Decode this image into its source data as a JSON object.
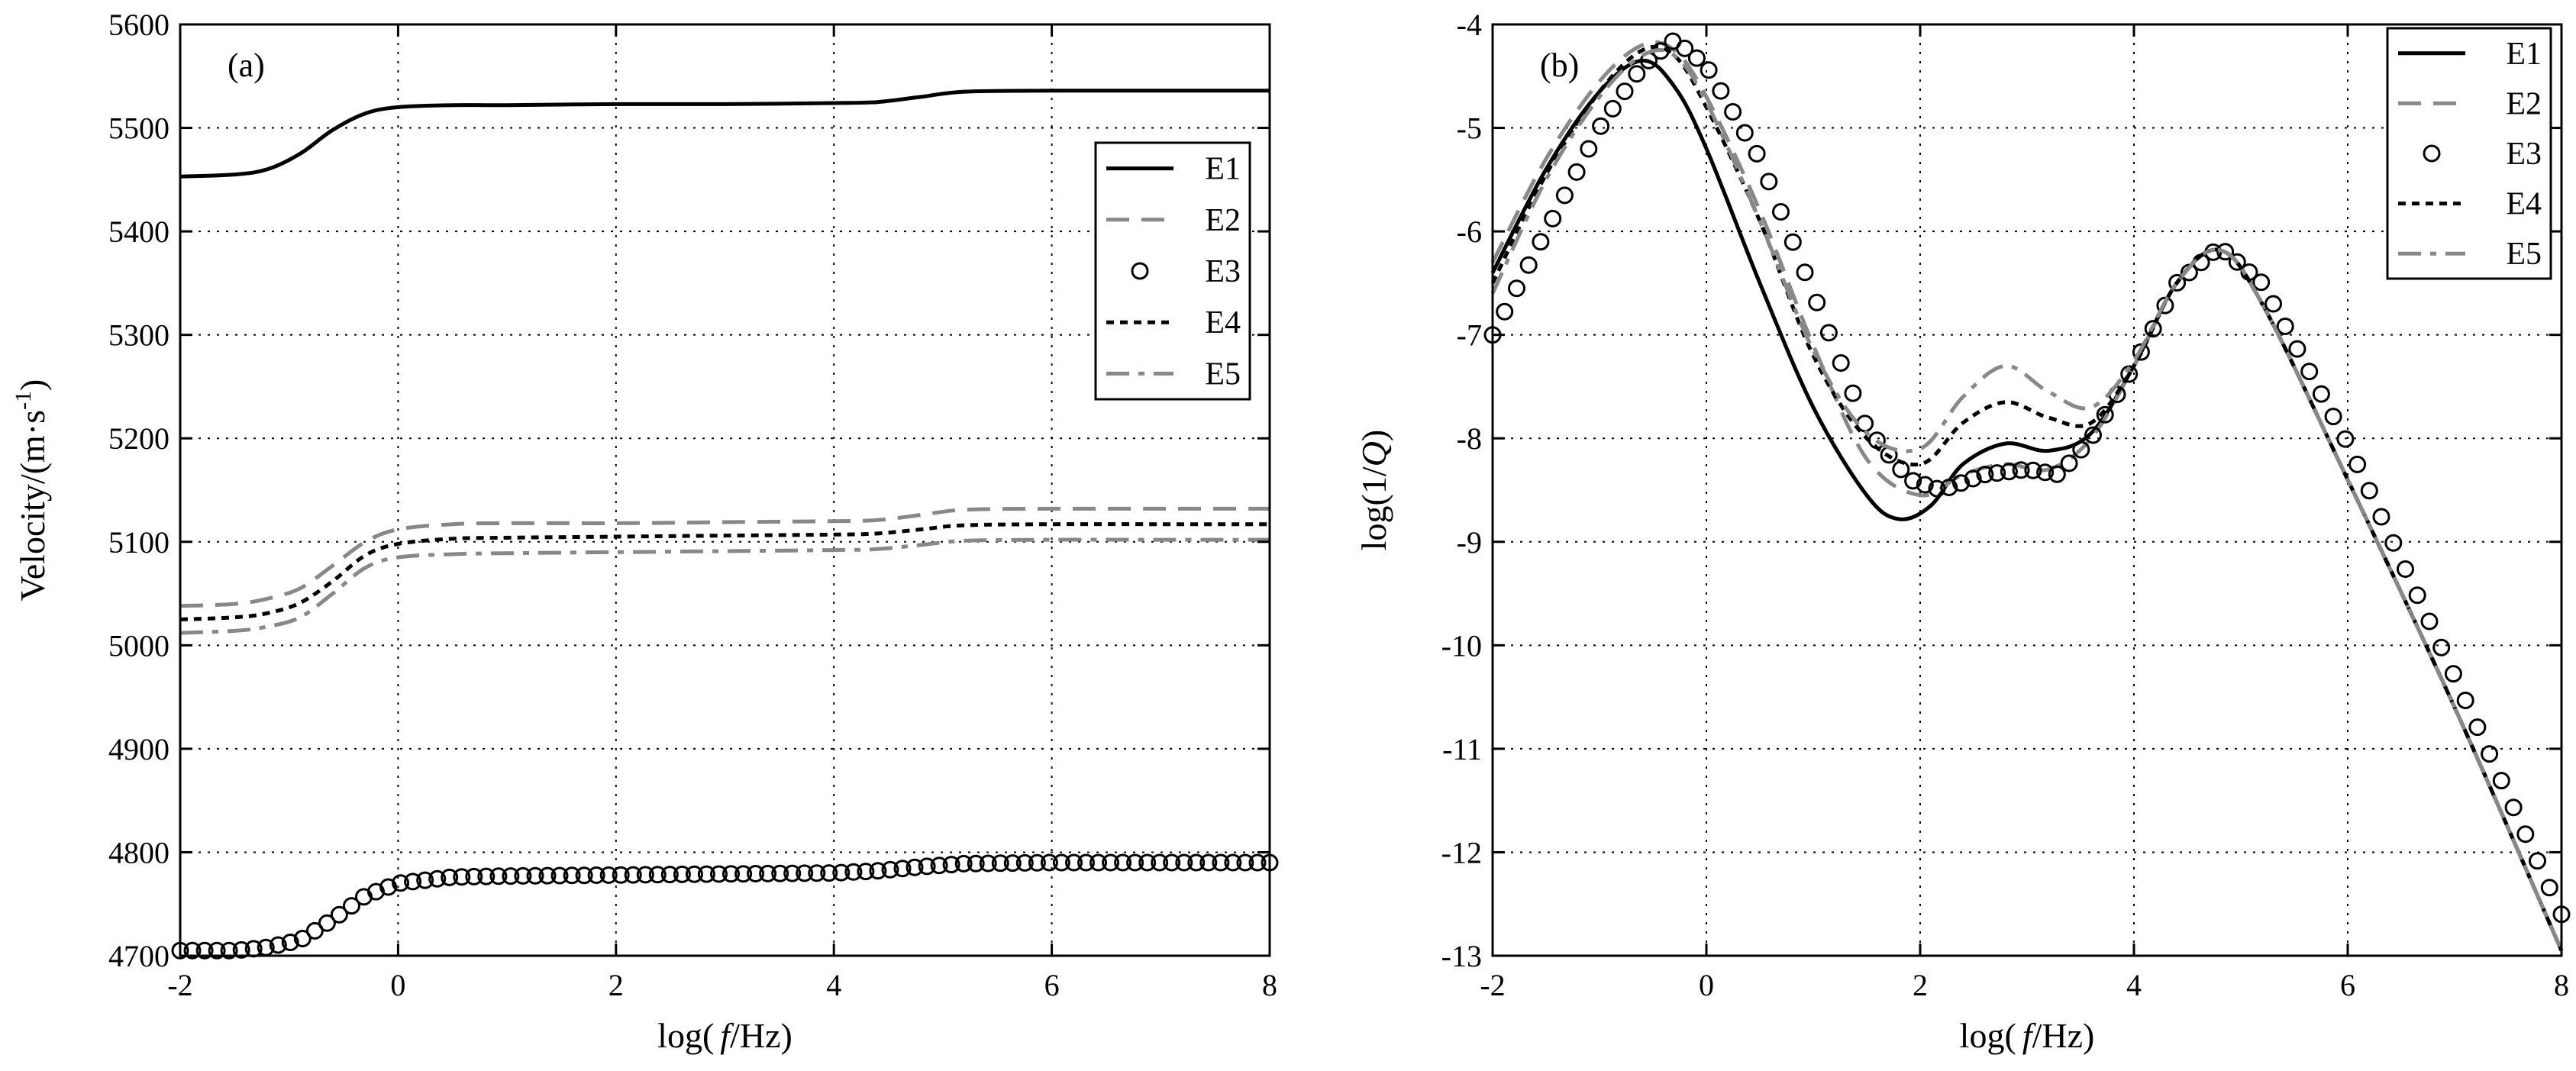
{
  "chart_data": [
    {
      "type": "line",
      "panel_label": "(a)",
      "xlabel_pre": "log(",
      "xlabel_var": "f",
      "xlabel_post": "/Hz)",
      "ylabel_main": "Velocity/(m·s",
      "ylabel_sup": "-1",
      "ylabel_end": ")",
      "xlim": [
        -2,
        8
      ],
      "ylim": [
        4700,
        5600
      ],
      "xticks": [
        -2,
        0,
        2,
        4,
        6,
        8
      ],
      "xtick_labels": [
        "-2",
        "0",
        "2",
        "4",
        "6",
        "8"
      ],
      "yticks": [
        4700,
        4800,
        4900,
        5000,
        5100,
        5200,
        5300,
        5400,
        5500,
        5600
      ],
      "ytick_labels": [
        "4700",
        "4800",
        "4900",
        "5000",
        "5100",
        "5200",
        "5300",
        "5400",
        "5500",
        "5600"
      ],
      "grid": true,
      "legend_position": "top-right",
      "series": [
        {
          "name": "E1",
          "color": "#000000",
          "style": "solid",
          "points": [
            [
              -2,
              5453
            ],
            [
              -1.5,
              5455
            ],
            [
              -1.2,
              5460
            ],
            [
              -0.9,
              5475
            ],
            [
              -0.6,
              5498
            ],
            [
              -0.3,
              5514
            ],
            [
              0,
              5520
            ],
            [
              0.5,
              5522
            ],
            [
              1,
              5522
            ],
            [
              2,
              5523
            ],
            [
              3,
              5523
            ],
            [
              4,
              5524
            ],
            [
              4.4,
              5525
            ],
            [
              4.8,
              5530
            ],
            [
              5.2,
              5535
            ],
            [
              6,
              5536
            ],
            [
              7,
              5536
            ],
            [
              8,
              5536
            ]
          ]
        },
        {
          "name": "E2",
          "color": "#888888",
          "style": "dash",
          "points": [
            [
              -2,
              5038
            ],
            [
              -1.5,
              5040
            ],
            [
              -1.2,
              5045
            ],
            [
              -0.9,
              5055
            ],
            [
              -0.6,
              5077
            ],
            [
              -0.3,
              5100
            ],
            [
              0,
              5112
            ],
            [
              0.5,
              5117
            ],
            [
              1,
              5118
            ],
            [
              2,
              5118
            ],
            [
              3,
              5119
            ],
            [
              4,
              5120
            ],
            [
              4.4,
              5121
            ],
            [
              4.8,
              5126
            ],
            [
              5.2,
              5131
            ],
            [
              6,
              5132
            ],
            [
              7,
              5132
            ],
            [
              8,
              5132
            ]
          ]
        },
        {
          "name": "E3",
          "color": "#000000",
          "style": "circle",
          "points": [
            [
              -2,
              4705
            ],
            [
              -1.5,
              4705
            ],
            [
              -1.2,
              4708
            ],
            [
              -0.9,
              4715
            ],
            [
              -0.6,
              4735
            ],
            [
              -0.3,
              4758
            ],
            [
              0,
              4770
            ],
            [
              0.5,
              4776
            ],
            [
              1,
              4777
            ],
            [
              2,
              4778
            ],
            [
              3,
              4779
            ],
            [
              4,
              4780
            ],
            [
              4.4,
              4782
            ],
            [
              4.8,
              4786
            ],
            [
              5.2,
              4789
            ],
            [
              6,
              4790
            ],
            [
              7,
              4790
            ],
            [
              8,
              4790
            ]
          ]
        },
        {
          "name": "E4",
          "color": "#000000",
          "style": "dot",
          "points": [
            [
              -2,
              5025
            ],
            [
              -1.5,
              5027
            ],
            [
              -1.2,
              5031
            ],
            [
              -0.9,
              5041
            ],
            [
              -0.6,
              5062
            ],
            [
              -0.3,
              5087
            ],
            [
              0,
              5098
            ],
            [
              0.5,
              5103
            ],
            [
              1,
              5104
            ],
            [
              2,
              5105
            ],
            [
              3,
              5106
            ],
            [
              4,
              5107
            ],
            [
              4.4,
              5108
            ],
            [
              4.8,
              5112
            ],
            [
              5.2,
              5116
            ],
            [
              6,
              5117
            ],
            [
              7,
              5117
            ],
            [
              8,
              5117
            ]
          ]
        },
        {
          "name": "E5",
          "color": "#888888",
          "style": "dashdot",
          "points": [
            [
              -2,
              5012
            ],
            [
              -1.5,
              5014
            ],
            [
              -1.2,
              5018
            ],
            [
              -0.9,
              5027
            ],
            [
              -0.6,
              5050
            ],
            [
              -0.3,
              5075
            ],
            [
              0,
              5085
            ],
            [
              0.5,
              5088
            ],
            [
              1,
              5089
            ],
            [
              2,
              5090
            ],
            [
              3,
              5091
            ],
            [
              4,
              5092
            ],
            [
              4.4,
              5093
            ],
            [
              4.8,
              5097
            ],
            [
              5.2,
              5101
            ],
            [
              6,
              5102
            ],
            [
              7,
              5102
            ],
            [
              8,
              5102
            ]
          ]
        }
      ]
    },
    {
      "type": "line",
      "panel_label": "(b)",
      "xlabel_pre": "log(",
      "xlabel_var": "f",
      "xlabel_post": "/Hz)",
      "ylabel_pre": "log(1/",
      "ylabel_var": "Q",
      "ylabel_post": ")",
      "xlim": [
        -2,
        8
      ],
      "ylim": [
        -13,
        -4
      ],
      "xticks": [
        -2,
        0,
        2,
        4,
        6,
        8
      ],
      "xtick_labels": [
        "-2",
        "0",
        "2",
        "4",
        "6",
        "8"
      ],
      "yticks": [
        -13,
        -12,
        -11,
        -10,
        -9,
        -8,
        -7,
        -6,
        -5,
        -4
      ],
      "ytick_labels": [
        "-13",
        "-12",
        "-11",
        "-10",
        "-9",
        "-8",
        "-7",
        "-6",
        "-5",
        "-4"
      ],
      "grid": true,
      "legend_position": "top-right",
      "series": [
        {
          "name": "E1",
          "color": "#000000",
          "style": "solid",
          "points": [
            [
              -2,
              -6.4
            ],
            [
              -1.5,
              -5.4
            ],
            [
              -1,
              -4.65
            ],
            [
              -0.6,
              -4.35
            ],
            [
              -0.3,
              -4.6
            ],
            [
              0,
              -5.2
            ],
            [
              0.5,
              -6.5
            ],
            [
              1,
              -7.7
            ],
            [
              1.5,
              -8.55
            ],
            [
              1.8,
              -8.78
            ],
            [
              2.1,
              -8.65
            ],
            [
              2.4,
              -8.25
            ],
            [
              2.8,
              -8.05
            ],
            [
              3.2,
              -8.12
            ],
            [
              3.6,
              -7.95
            ],
            [
              4,
              -7.3
            ],
            [
              4.4,
              -6.5
            ],
            [
              4.8,
              -6.18
            ],
            [
              5.2,
              -6.7
            ],
            [
              6,
              -8.4
            ],
            [
              7,
              -10.6
            ],
            [
              8,
              -12.95
            ]
          ]
        },
        {
          "name": "E2",
          "color": "#888888",
          "style": "dash",
          "points": [
            [
              -2,
              -6.3
            ],
            [
              -1.5,
              -5.3
            ],
            [
              -1,
              -4.55
            ],
            [
              -0.6,
              -4.2
            ],
            [
              -0.3,
              -4.25
            ],
            [
              0,
              -4.7
            ],
            [
              0.5,
              -5.8
            ],
            [
              1,
              -7.1
            ],
            [
              1.5,
              -8.2
            ],
            [
              2,
              -8.55
            ],
            [
              2.4,
              -8.35
            ],
            [
              2.8,
              -8.25
            ],
            [
              3.2,
              -8.3
            ],
            [
              3.6,
              -8.0
            ],
            [
              4,
              -7.3
            ],
            [
              4.4,
              -6.5
            ],
            [
              4.8,
              -6.18
            ],
            [
              5.2,
              -6.7
            ],
            [
              6,
              -8.4
            ],
            [
              7,
              -10.6
            ],
            [
              8,
              -12.95
            ]
          ]
        },
        {
          "name": "E3",
          "color": "#000000",
          "style": "circle",
          "points": [
            [
              -2,
              -7.0
            ],
            [
              -1.5,
              -6.0
            ],
            [
              -1,
              -5.0
            ],
            [
              -0.6,
              -4.4
            ],
            [
              -0.3,
              -4.15
            ],
            [
              0,
              -4.4
            ],
            [
              0.5,
              -5.3
            ],
            [
              1,
              -6.6
            ],
            [
              1.5,
              -7.9
            ],
            [
              1.9,
              -8.4
            ],
            [
              2.2,
              -8.5
            ],
            [
              2.6,
              -8.35
            ],
            [
              3,
              -8.3
            ],
            [
              3.3,
              -8.35
            ],
            [
              3.6,
              -8.0
            ],
            [
              4,
              -7.3
            ],
            [
              4.4,
              -6.5
            ],
            [
              4.8,
              -6.15
            ],
            [
              5.2,
              -6.5
            ],
            [
              6,
              -8.05
            ],
            [
              7,
              -10.3
            ],
            [
              8,
              -12.6
            ]
          ]
        },
        {
          "name": "E4",
          "color": "#000000",
          "style": "dot",
          "points": [
            [
              -2,
              -6.5
            ],
            [
              -1.5,
              -5.45
            ],
            [
              -1,
              -4.65
            ],
            [
              -0.6,
              -4.25
            ],
            [
              -0.3,
              -4.3
            ],
            [
              0,
              -4.8
            ],
            [
              0.5,
              -5.9
            ],
            [
              1,
              -7.2
            ],
            [
              1.5,
              -8.0
            ],
            [
              2,
              -8.25
            ],
            [
              2.4,
              -7.85
            ],
            [
              2.8,
              -7.65
            ],
            [
              3.2,
              -7.8
            ],
            [
              3.6,
              -7.85
            ],
            [
              4,
              -7.3
            ],
            [
              4.4,
              -6.5
            ],
            [
              4.8,
              -6.18
            ],
            [
              5.2,
              -6.7
            ],
            [
              6,
              -8.4
            ],
            [
              7,
              -10.6
            ],
            [
              8,
              -12.95
            ]
          ]
        },
        {
          "name": "E5",
          "color": "#888888",
          "style": "dashdot",
          "points": [
            [
              -2,
              -6.6
            ],
            [
              -1.5,
              -5.5
            ],
            [
              -1,
              -4.7
            ],
            [
              -0.6,
              -4.3
            ],
            [
              -0.3,
              -4.3
            ],
            [
              0,
              -4.75
            ],
            [
              0.5,
              -5.9
            ],
            [
              1,
              -7.15
            ],
            [
              1.5,
              -7.95
            ],
            [
              2,
              -8.1
            ],
            [
              2.4,
              -7.6
            ],
            [
              2.8,
              -7.3
            ],
            [
              3.2,
              -7.55
            ],
            [
              3.6,
              -7.7
            ],
            [
              4,
              -7.25
            ],
            [
              4.4,
              -6.5
            ],
            [
              4.8,
              -6.18
            ],
            [
              5.2,
              -6.7
            ],
            [
              6,
              -8.4
            ],
            [
              7,
              -10.6
            ],
            [
              8,
              -12.95
            ]
          ]
        }
      ]
    }
  ]
}
